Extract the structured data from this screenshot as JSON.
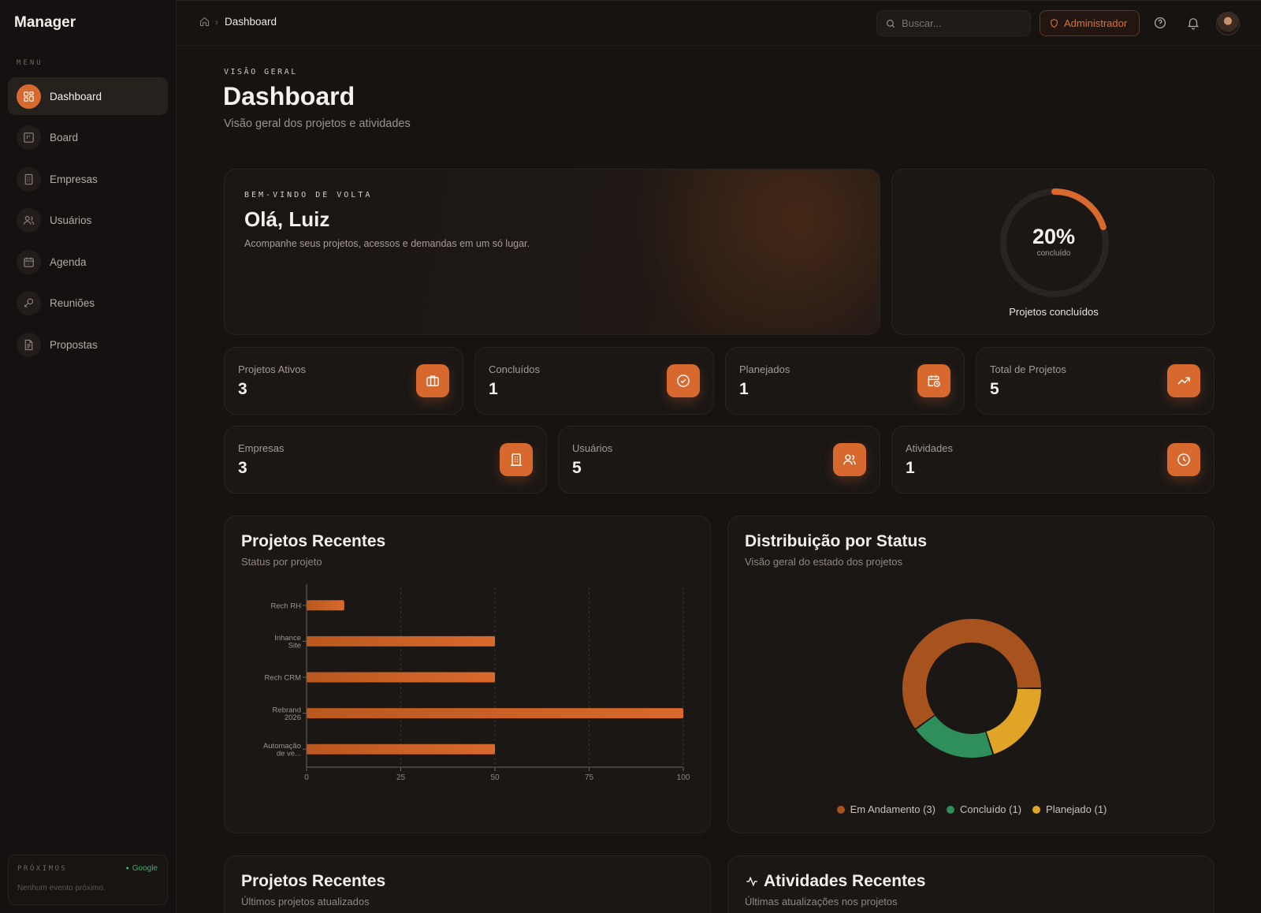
{
  "app": {
    "name": "Manager"
  },
  "sidebar": {
    "menu_label": "MENU",
    "items": [
      {
        "label": "Dashboard",
        "icon": "dashboard-icon",
        "active": true
      },
      {
        "label": "Board",
        "icon": "board-icon"
      },
      {
        "label": "Empresas",
        "icon": "building-icon"
      },
      {
        "label": "Usuários",
        "icon": "users-icon"
      },
      {
        "label": "Agenda",
        "icon": "calendar-icon"
      },
      {
        "label": "Reuniões",
        "icon": "meeting-icon"
      },
      {
        "label": "Propostas",
        "icon": "document-icon"
      }
    ],
    "upcoming": {
      "title": "PRÓXIMOS",
      "source": "Google",
      "empty": "Nenhum evento próximo."
    }
  },
  "topbar": {
    "breadcrumb": "Dashboard",
    "search_placeholder": "Buscar...",
    "role": "Administrador"
  },
  "page": {
    "overline": "VISÃO GERAL",
    "title": "Dashboard",
    "subtitle": "Visão geral dos projetos e atividades"
  },
  "welcome": {
    "overline": "BEM-VINDO DE VOLTA",
    "greeting": "Olá, Luiz",
    "description": "Acompanhe seus projetos, acessos e demandas em um só lugar."
  },
  "completion": {
    "percent_label": "20%",
    "percent": 0.2,
    "sub": "concluído",
    "label": "Projetos concluídos"
  },
  "stats_row1": [
    {
      "label": "Projetos Ativos",
      "value": "3",
      "icon": "briefcase-icon"
    },
    {
      "label": "Concluídos",
      "value": "1",
      "icon": "check-circle-icon"
    },
    {
      "label": "Planejados",
      "value": "1",
      "icon": "calendar-clock-icon"
    },
    {
      "label": "Total de Projetos",
      "value": "5",
      "icon": "trending-up-icon"
    }
  ],
  "stats_row2": [
    {
      "label": "Empresas",
      "value": "3",
      "icon": "building-icon"
    },
    {
      "label": "Usuários",
      "value": "5",
      "icon": "users-icon"
    },
    {
      "label": "Atividades",
      "value": "1",
      "icon": "clock-icon"
    }
  ],
  "recent_projects": {
    "title": "Projetos Recentes",
    "subtitle": "Status por projeto"
  },
  "status_dist": {
    "title": "Distribuição por Status",
    "subtitle": "Visão geral do estado dos projetos"
  },
  "recent_projects_2": {
    "title": "Projetos Recentes",
    "subtitle": "Últimos projetos atualizados"
  },
  "recent_activities": {
    "title": "Atividades Recentes",
    "subtitle": "Últimas atualizações nos projetos"
  },
  "colors": {
    "accent": "#d7692e",
    "in_progress": "#a8521e",
    "done": "#2f8f5b",
    "planned": "#e0a526"
  },
  "chart_data": [
    {
      "type": "bar",
      "orientation": "horizontal",
      "categories": [
        [
          "Rech RH"
        ],
        [
          "Inhance",
          "Site"
        ],
        [
          "Rech CRM"
        ],
        [
          "Rebrand",
          "2026"
        ],
        [
          "Automação",
          "de ve..."
        ]
      ],
      "values": [
        10,
        50,
        50,
        100,
        50
      ],
      "xlim": [
        0,
        100
      ],
      "xticks": [
        "0",
        "25",
        "50",
        "75",
        "100"
      ],
      "grid": true
    },
    {
      "type": "pie",
      "donut": true,
      "labels": [
        "Em Andamento (3)",
        "Concluído (1)",
        "Planejado (1)"
      ],
      "values": [
        3,
        1,
        1
      ],
      "colors": [
        "#a8521e",
        "#2f8f5b",
        "#e0a526"
      ],
      "legend": "bottom"
    }
  ]
}
